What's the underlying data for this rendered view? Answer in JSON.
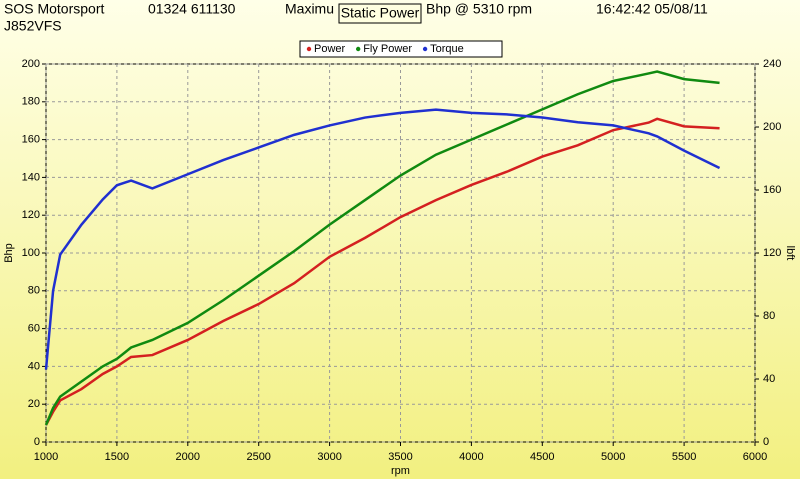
{
  "header": {
    "company": "SOS Motorsport",
    "phone": "01324 611130",
    "maximum": "Maximu",
    "max_rpm": "Bhp @ 5310 rpm",
    "timestamp": "16:42:42 05/08/11",
    "registration": "J852VFS"
  },
  "chart_data": {
    "type": "line",
    "title": "Static Power",
    "x_label": "rpm",
    "y_label": "Bhp",
    "y2_label": "lbft",
    "x": [
      1000,
      1050,
      1100,
      1250,
      1400,
      1500,
      1600,
      1750,
      2000,
      2250,
      2500,
      2750,
      3000,
      3250,
      3500,
      3750,
      4000,
      4250,
      4500,
      4750,
      5000,
      5250,
      5310,
      5500,
      5750
    ],
    "series": [
      {
        "name": "Power",
        "color": "#d42020",
        "values": [
          9,
          16,
          22,
          28,
          36,
          40,
          45,
          46,
          54,
          64,
          73,
          84,
          98,
          108,
          119,
          128,
          136,
          143,
          151,
          157,
          165,
          169,
          171,
          167,
          166
        ]
      },
      {
        "name": "Fly Power",
        "color": "#108a10",
        "values": [
          9,
          18,
          24,
          32,
          40,
          44,
          50,
          54,
          63,
          75,
          88,
          101,
          115,
          128,
          141,
          152,
          160,
          168,
          176,
          184,
          191,
          195,
          196,
          192,
          190
        ]
      },
      {
        "name": "Torque",
        "color": "#2030d0",
        "axis": "y2",
        "values": [
          46,
          96,
          119,
          138,
          154,
          163,
          166,
          161,
          170,
          179,
          187,
          195,
          201,
          206,
          209,
          211,
          209,
          208,
          206,
          203,
          201,
          196,
          194,
          185,
          174
        ]
      }
    ],
    "xlim": [
      1000,
      6000
    ],
    "xticks": [
      1000,
      1500,
      2000,
      2500,
      3000,
      3500,
      4000,
      4500,
      5000,
      5500,
      6000
    ],
    "ylim": [
      0,
      200
    ],
    "yticks": [
      0,
      20,
      40,
      60,
      80,
      100,
      120,
      140,
      160,
      180,
      200
    ],
    "y2lim": [
      0,
      240
    ],
    "y2ticks": [
      0,
      40,
      80,
      120,
      160,
      200,
      240
    ],
    "grid": true
  }
}
